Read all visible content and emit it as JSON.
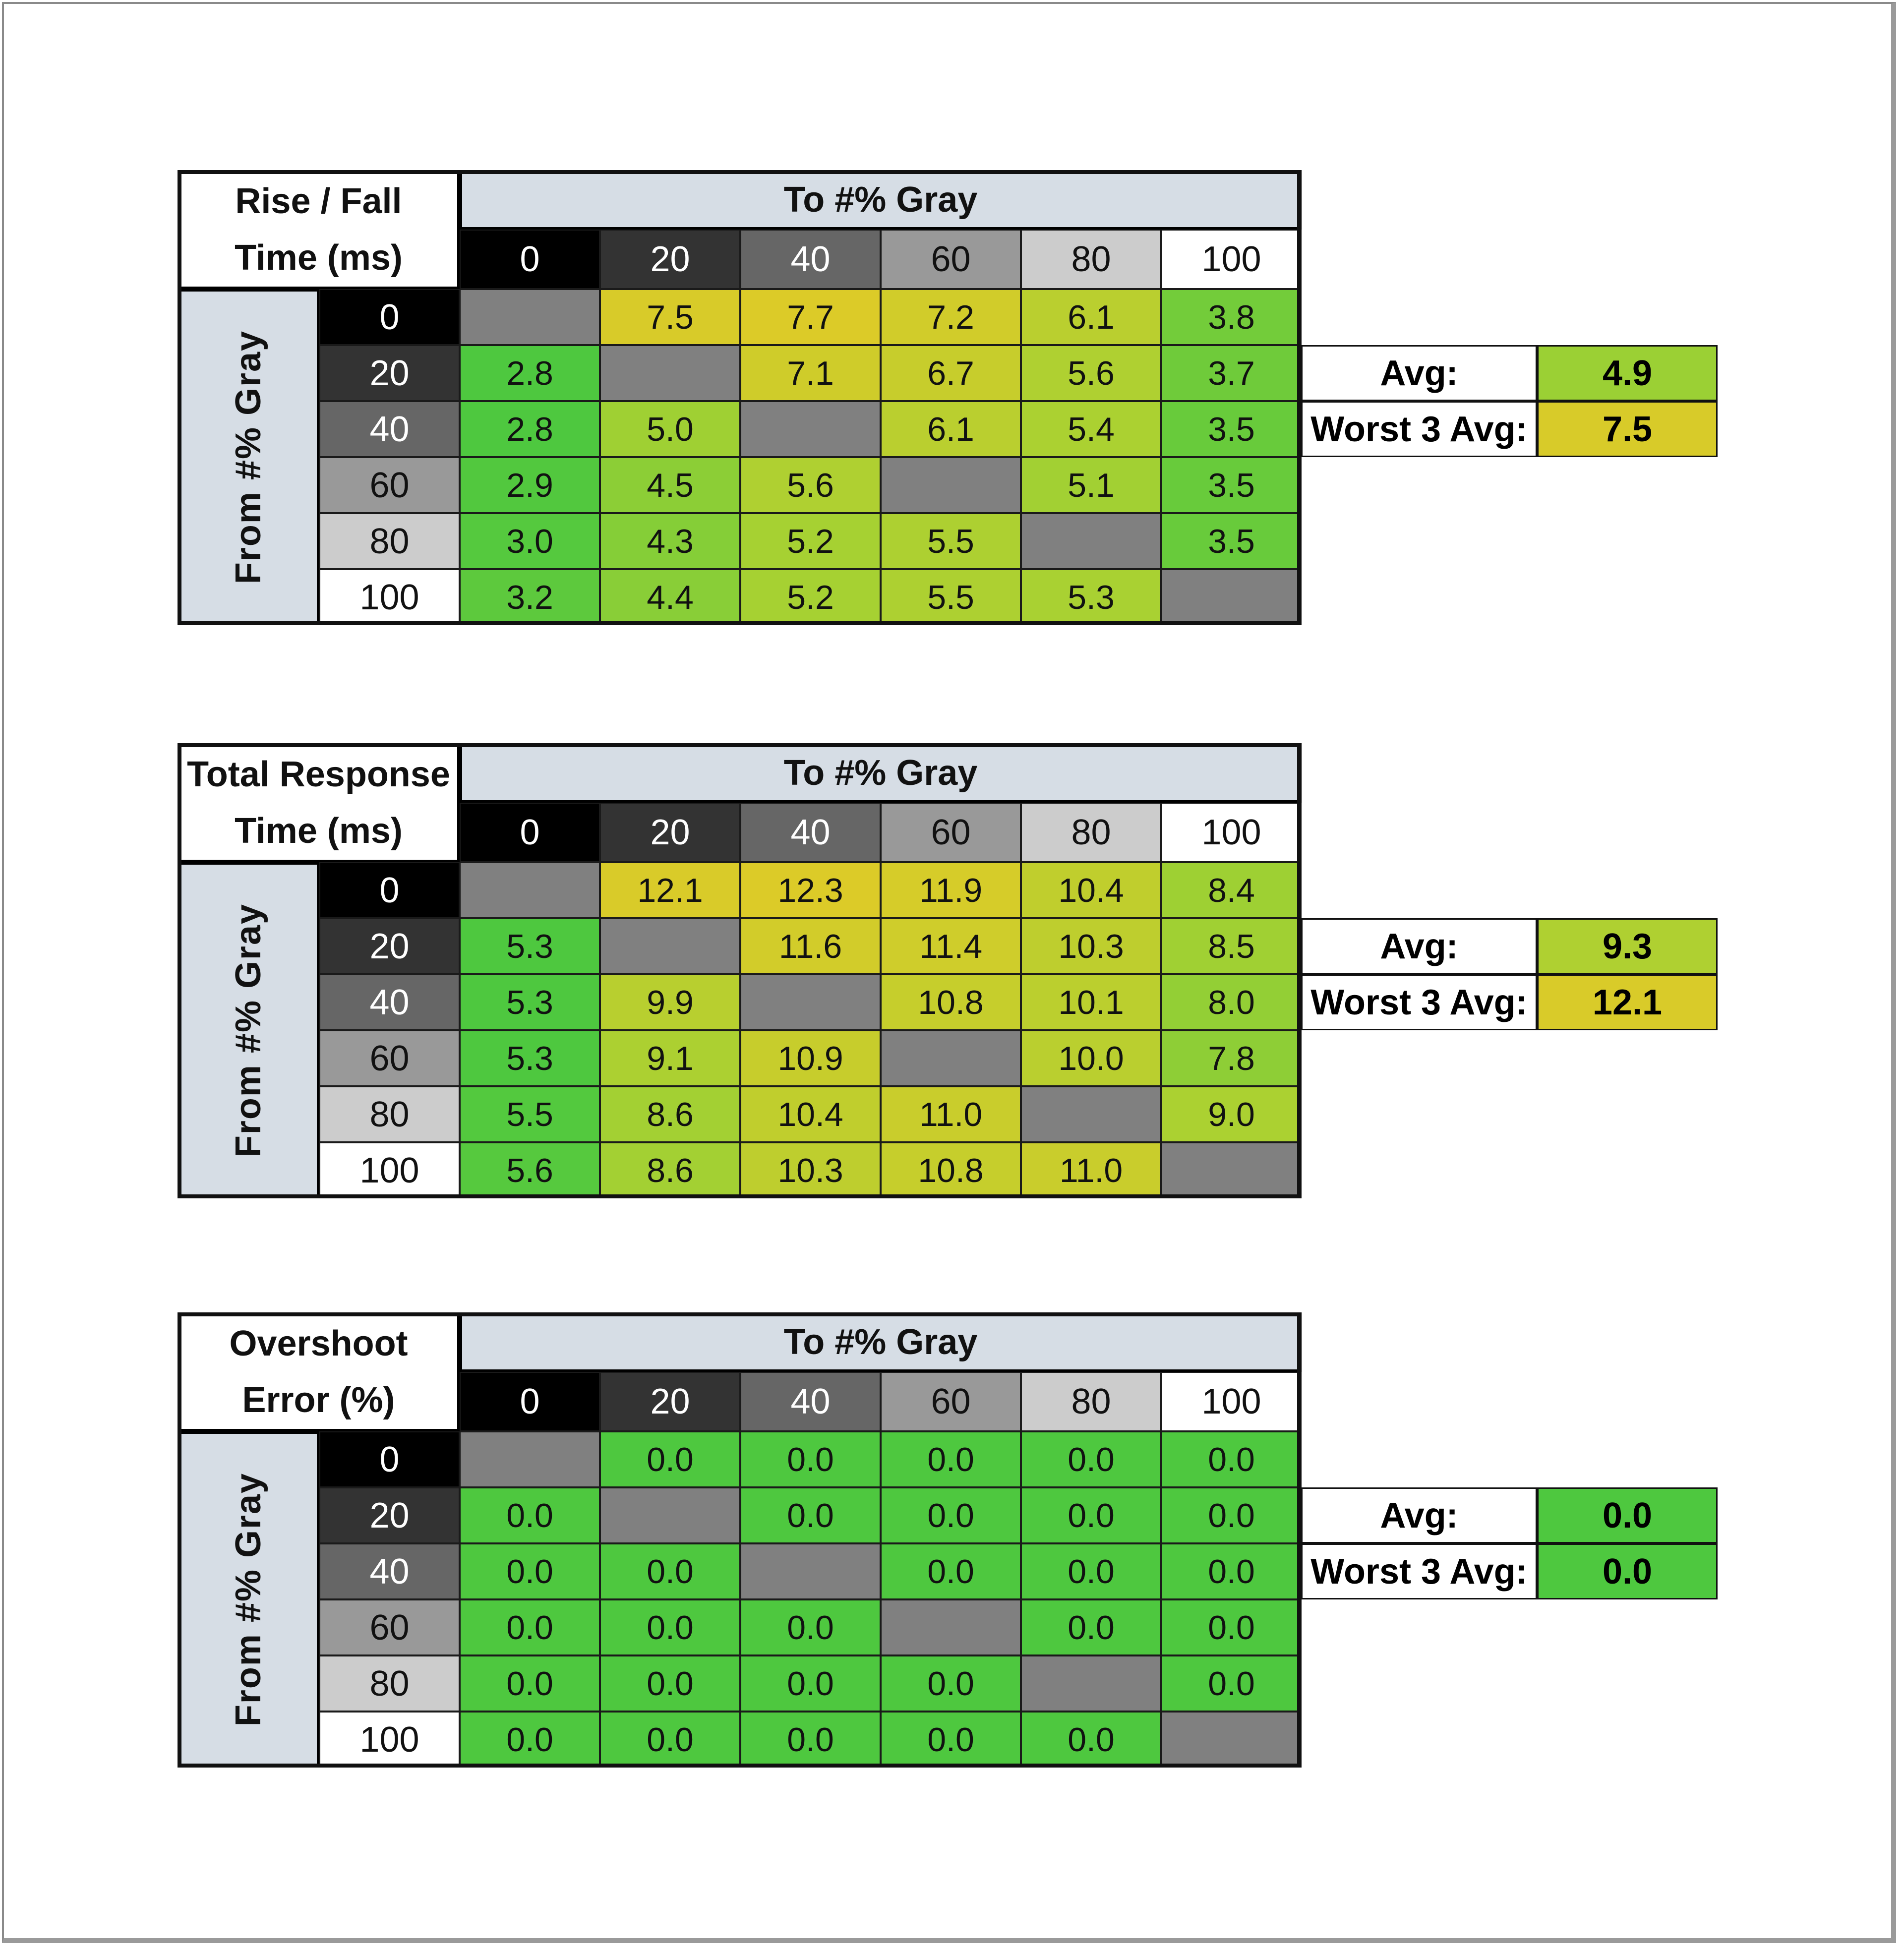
{
  "colors": {
    "diagonal": "#808080",
    "header_band": "#d6dde5",
    "good": "#4ec83f",
    "mid": "#a8d132",
    "bad": "#dccb28"
  },
  "gray_levels": [
    "0",
    "20",
    "40",
    "60",
    "80",
    "100"
  ],
  "gray_swatches": [
    "#000000",
    "#333333",
    "#666666",
    "#999999",
    "#cccccc",
    "#ffffff"
  ],
  "tables": [
    {
      "title_line1": "Rise / Fall",
      "title_line2": "Time (ms)",
      "column_header": "To #% Gray",
      "row_header": "From #% Gray",
      "rows": [
        [
          "",
          "7.5",
          "7.7",
          "7.2",
          "6.1",
          "3.8"
        ],
        [
          "2.8",
          "",
          "7.1",
          "6.7",
          "5.6",
          "3.7"
        ],
        [
          "2.8",
          "5.0",
          "",
          "6.1",
          "5.4",
          "3.5"
        ],
        [
          "2.9",
          "4.5",
          "5.6",
          "",
          "5.1",
          "3.5"
        ],
        [
          "3.0",
          "4.3",
          "5.2",
          "5.5",
          "",
          "3.5"
        ],
        [
          "3.2",
          "4.4",
          "5.2",
          "5.5",
          "5.3",
          ""
        ]
      ],
      "avg_label": "Avg:",
      "avg": "4.9",
      "worst_label": "Worst 3 Avg:",
      "worst": "7.5"
    },
    {
      "title_line1": "Total Response",
      "title_line2": "Time (ms)",
      "column_header": "To #% Gray",
      "row_header": "From #% Gray",
      "rows": [
        [
          "",
          "12.1",
          "12.3",
          "11.9",
          "10.4",
          "8.4"
        ],
        [
          "5.3",
          "",
          "11.6",
          "11.4",
          "10.3",
          "8.5"
        ],
        [
          "5.3",
          "9.9",
          "",
          "10.8",
          "10.1",
          "8.0"
        ],
        [
          "5.3",
          "9.1",
          "10.9",
          "",
          "10.0",
          "7.8"
        ],
        [
          "5.5",
          "8.6",
          "10.4",
          "11.0",
          "",
          "9.0"
        ],
        [
          "5.6",
          "8.6",
          "10.3",
          "10.8",
          "11.0",
          ""
        ]
      ],
      "avg_label": "Avg:",
      "avg": "9.3",
      "worst_label": "Worst 3 Avg:",
      "worst": "12.1"
    },
    {
      "title_line1": "Overshoot",
      "title_line2": "Error (%)",
      "column_header": "To #% Gray",
      "row_header": "From #% Gray",
      "rows": [
        [
          "",
          "0.0",
          "0.0",
          "0.0",
          "0.0",
          "0.0"
        ],
        [
          "0.0",
          "",
          "0.0",
          "0.0",
          "0.0",
          "0.0"
        ],
        [
          "0.0",
          "0.0",
          "",
          "0.0",
          "0.0",
          "0.0"
        ],
        [
          "0.0",
          "0.0",
          "0.0",
          "",
          "0.0",
          "0.0"
        ],
        [
          "0.0",
          "0.0",
          "0.0",
          "0.0",
          "",
          "0.0"
        ],
        [
          "0.0",
          "0.0",
          "0.0",
          "0.0",
          "0.0",
          ""
        ]
      ],
      "avg_label": "Avg:",
      "avg": "0.0",
      "worst_label": "Worst 3 Avg:",
      "worst": "0.0"
    }
  ]
}
